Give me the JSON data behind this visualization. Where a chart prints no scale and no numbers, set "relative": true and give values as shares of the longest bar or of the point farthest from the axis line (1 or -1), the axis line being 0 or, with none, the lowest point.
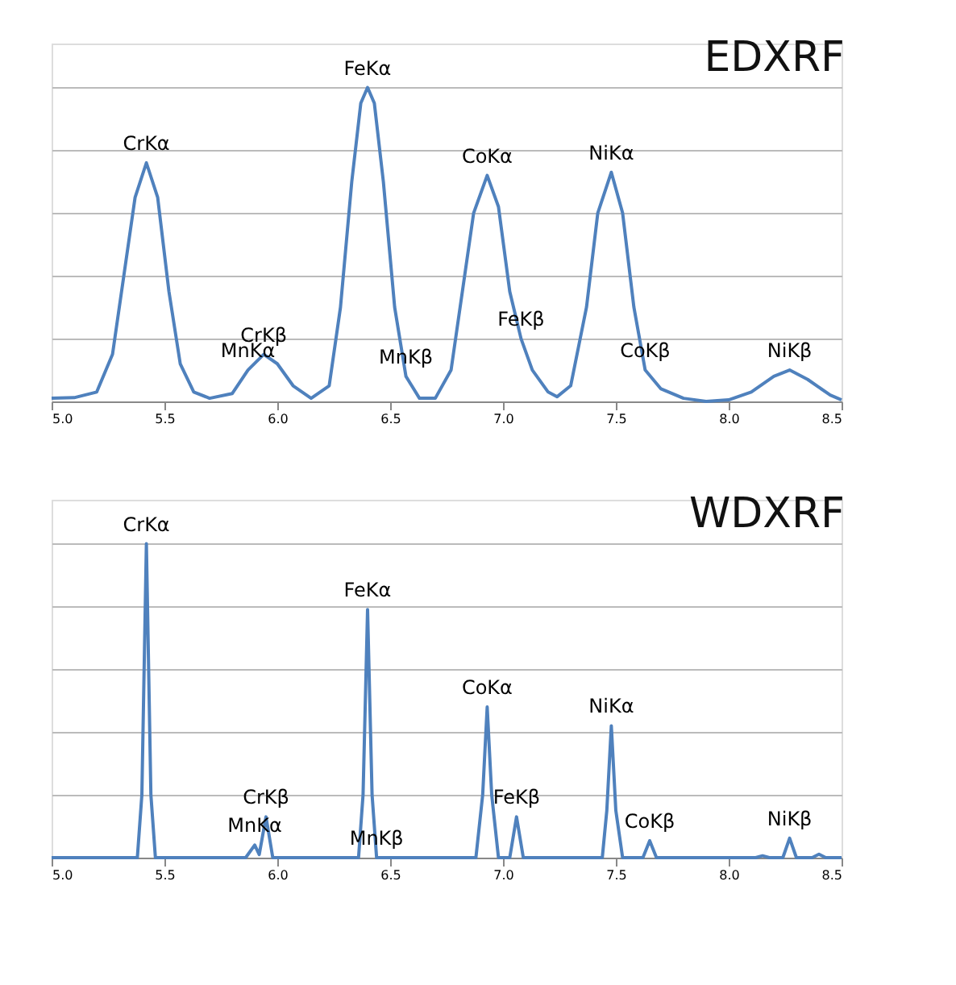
{
  "chart_data": [
    {
      "type": "line",
      "title": "EDXRF",
      "relative": true,
      "grid": "y",
      "tick_labels": "x",
      "line_style": "solid",
      "marker": "none",
      "xlim": [
        5.0,
        8.5
      ],
      "xticks": [
        {
          "value": 5.0,
          "label": "5.0"
        },
        {
          "value": 5.5,
          "label": "5.5"
        },
        {
          "value": 6.0,
          "label": "6.0"
        },
        {
          "value": 6.5,
          "label": "6.5"
        },
        {
          "value": 7.0,
          "label": "7.0"
        },
        {
          "value": 7.5,
          "label": "7.5"
        },
        {
          "value": 8.0,
          "label": "8.0"
        },
        {
          "value": 8.5,
          "label": "8.5"
        }
      ],
      "series": [
        {
          "color": "#4f81bd",
          "x": [
            5.0,
            5.1,
            5.2,
            5.27,
            5.32,
            5.37,
            5.42,
            5.47,
            5.52,
            5.57,
            5.63,
            5.7,
            5.8,
            5.87,
            5.94,
            6.0,
            6.07,
            6.15,
            6.23,
            6.28,
            6.33,
            6.37,
            6.4,
            6.43,
            6.47,
            6.52,
            6.57,
            6.63,
            6.7,
            6.77,
            6.82,
            6.87,
            6.93,
            6.98,
            7.03,
            7.08,
            7.13,
            7.2,
            7.24,
            7.3,
            7.37,
            7.42,
            7.48,
            7.53,
            7.58,
            7.63,
            7.7,
            7.8,
            7.9,
            8.0,
            8.1,
            8.2,
            8.27,
            8.35,
            8.45,
            8.5
          ],
          "values": [
            0.01,
            0.012,
            0.03,
            0.15,
            0.4,
            0.65,
            0.76,
            0.65,
            0.35,
            0.12,
            0.03,
            0.01,
            0.025,
            0.1,
            0.15,
            0.12,
            0.05,
            0.01,
            0.05,
            0.3,
            0.7,
            0.95,
            1.0,
            0.95,
            0.7,
            0.3,
            0.08,
            0.01,
            0.01,
            0.1,
            0.35,
            0.6,
            0.72,
            0.62,
            0.35,
            0.2,
            0.1,
            0.03,
            0.015,
            0.05,
            0.3,
            0.6,
            0.73,
            0.6,
            0.3,
            0.1,
            0.04,
            0.01,
            0.0,
            0.005,
            0.03,
            0.08,
            0.1,
            0.07,
            0.02,
            0.005
          ]
        }
      ],
      "annotations": [
        {
          "text": "CrKα",
          "x": 5.42,
          "y": 0.76
        },
        {
          "text": "FeKα",
          "x": 6.4,
          "y": 1.0
        },
        {
          "text": "CoKα",
          "x": 6.93,
          "y": 0.72
        },
        {
          "text": "NiKα",
          "x": 7.48,
          "y": 0.73
        },
        {
          "text": "CrKβ",
          "x": 5.94,
          "y": 0.15
        },
        {
          "text": "MnKα",
          "x": 5.87,
          "y": 0.1
        },
        {
          "text": "MnKβ",
          "x": 6.57,
          "y": 0.08
        },
        {
          "text": "FeKβ",
          "x": 7.08,
          "y": 0.2
        },
        {
          "text": "CoKβ",
          "x": 7.63,
          "y": 0.1
        },
        {
          "text": "NiKβ",
          "x": 8.27,
          "y": 0.1
        }
      ]
    },
    {
      "type": "line",
      "title": "WDXRF",
      "relative": true,
      "grid": "y",
      "tick_labels": "x",
      "line_style": "solid",
      "marker": "none",
      "xlim": [
        5.0,
        8.5
      ],
      "xticks": [
        {
          "value": 5.0,
          "label": "5.0"
        },
        {
          "value": 5.5,
          "label": "5.5"
        },
        {
          "value": 6.0,
          "label": "6.0"
        },
        {
          "value": 6.5,
          "label": "6.5"
        },
        {
          "value": 7.0,
          "label": "7.0"
        },
        {
          "value": 7.5,
          "label": "7.5"
        },
        {
          "value": 8.0,
          "label": "8.0"
        },
        {
          "value": 8.5,
          "label": "8.5"
        }
      ],
      "series": [
        {
          "color": "#4f81bd",
          "x": [
            5.0,
            5.38,
            5.4,
            5.42,
            5.44,
            5.46,
            5.86,
            5.9,
            5.92,
            5.95,
            5.98,
            6.36,
            6.38,
            6.4,
            6.42,
            6.44,
            6.88,
            6.91,
            6.93,
            6.95,
            6.98,
            7.03,
            7.06,
            7.09,
            7.44,
            7.46,
            7.48,
            7.5,
            7.53,
            7.62,
            7.65,
            7.68,
            8.12,
            8.15,
            8.18,
            8.24,
            8.27,
            8.3,
            8.37,
            8.4,
            8.43,
            8.5
          ],
          "values": [
            0,
            0,
            0.2,
            1.0,
            0.2,
            0,
            0,
            0.04,
            0.01,
            0.13,
            0,
            0,
            0.2,
            0.79,
            0.2,
            0,
            0,
            0.2,
            0.48,
            0.2,
            0,
            0,
            0.13,
            0,
            0,
            0.15,
            0.42,
            0.15,
            0,
            0,
            0.054,
            0,
            0,
            0.006,
            0,
            0,
            0.062,
            0,
            0,
            0.011,
            0,
            0
          ]
        }
      ],
      "annotations": [
        {
          "text": "CrKα",
          "x": 5.42,
          "y": 1.0
        },
        {
          "text": "FeKα",
          "x": 6.4,
          "y": 0.79
        },
        {
          "text": "CoKα",
          "x": 6.93,
          "y": 0.48
        },
        {
          "text": "NiKα",
          "x": 7.48,
          "y": 0.42
        },
        {
          "text": "CrKβ",
          "x": 5.95,
          "y": 0.13
        },
        {
          "text": "MnKα",
          "x": 5.9,
          "y": 0.04
        },
        {
          "text": "MnKβ",
          "x": 6.44,
          "y": 0
        },
        {
          "text": "FeKβ",
          "x": 7.06,
          "y": 0.13
        },
        {
          "text": "CoKβ",
          "x": 7.65,
          "y": 0.054
        },
        {
          "text": "NiKβ",
          "x": 8.27,
          "y": 0.062
        }
      ]
    }
  ]
}
